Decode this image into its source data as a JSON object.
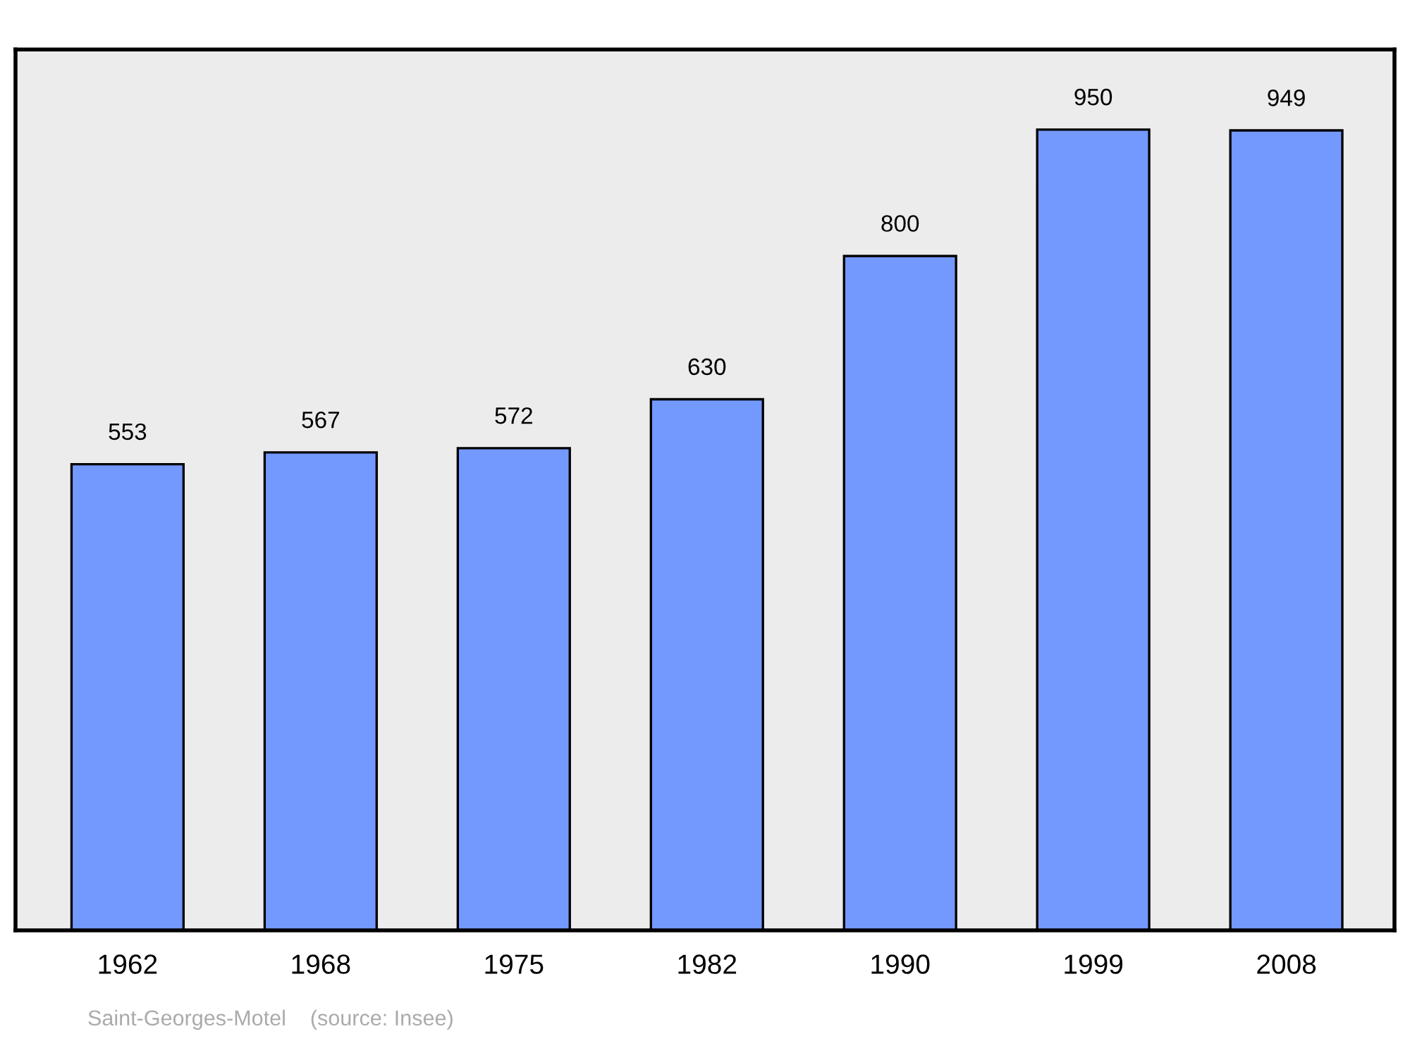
{
  "chart_data": {
    "type": "bar",
    "categories": [
      "1962",
      "1968",
      "1975",
      "1982",
      "1990",
      "1999",
      "2008"
    ],
    "values": [
      553,
      567,
      572,
      630,
      800,
      950,
      949
    ],
    "color": "#7399ff",
    "ylim": [
      0,
      1045
    ],
    "data_labels": true,
    "grid": false,
    "tick_labels": "x",
    "annotations": [
      "Saint-Georges-Motel    (source: Insee)"
    ]
  }
}
